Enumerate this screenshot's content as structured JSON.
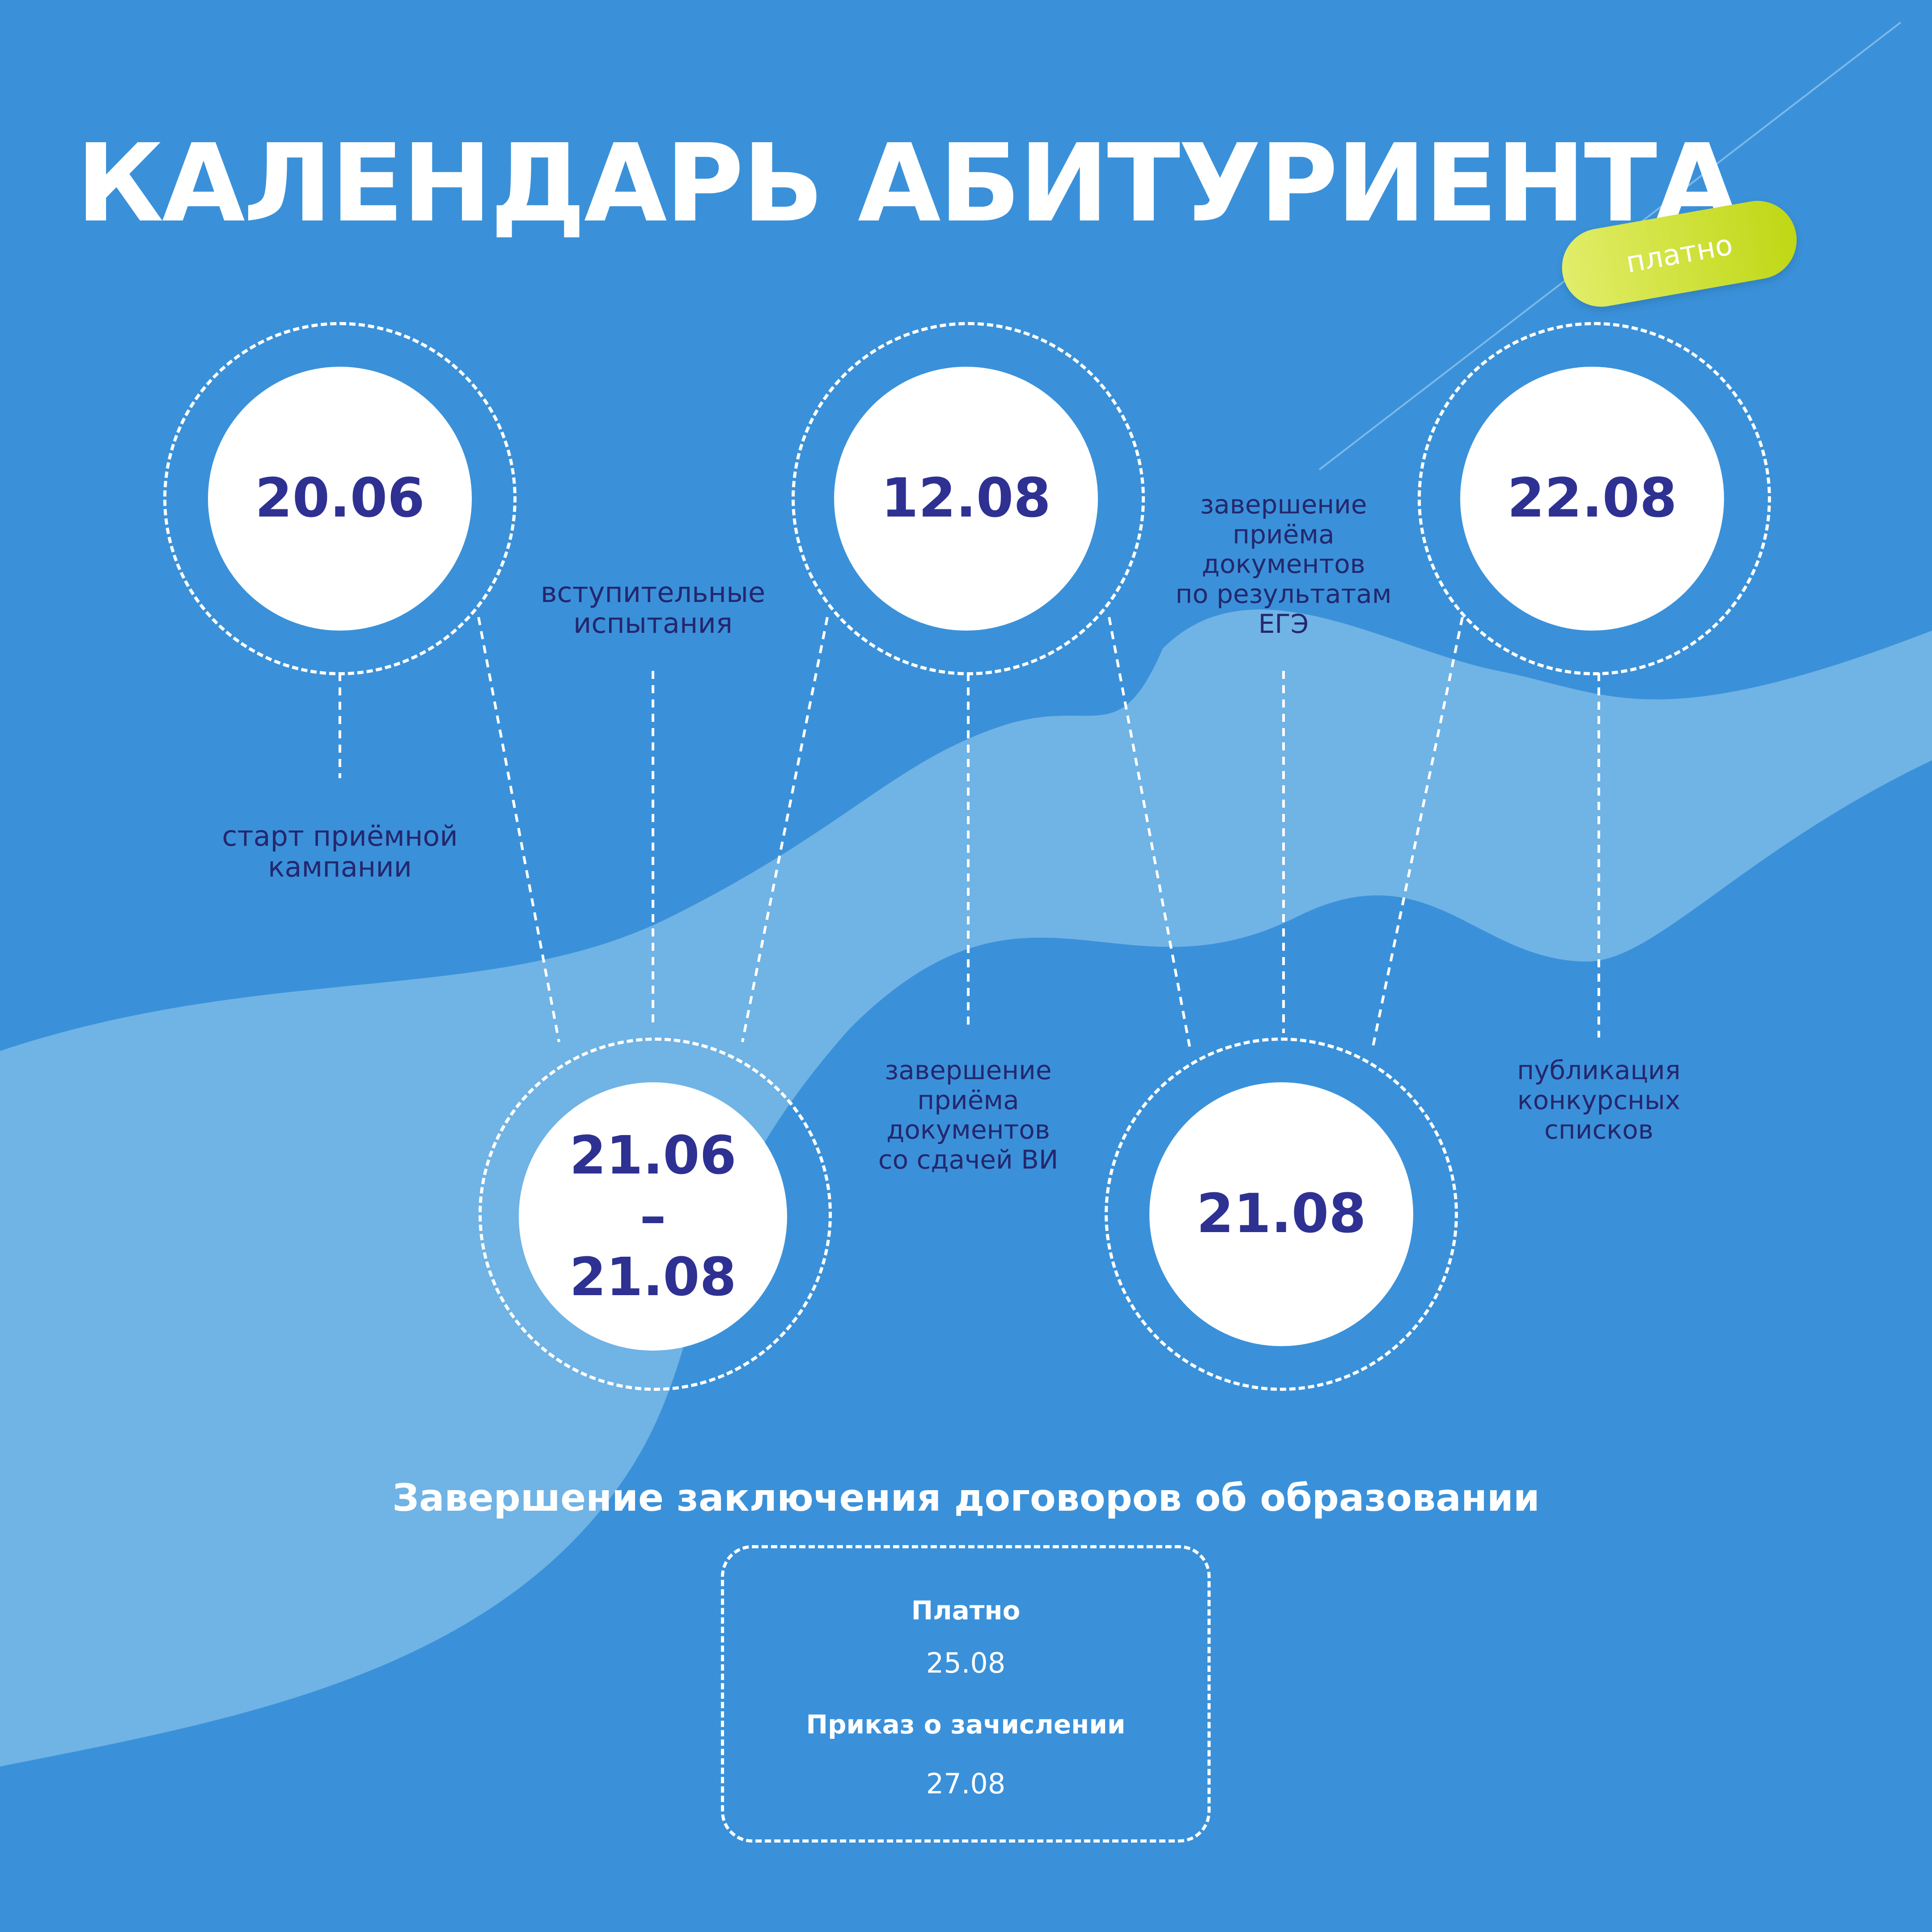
{
  "title": "КАЛЕНДАРЬ АБИТУРИЕНТА",
  "badge": "платно",
  "colors": {
    "background": "#3a91d9",
    "wave": "#7ab8e6",
    "date_text": "#2e3192",
    "label_text": "#24276e",
    "badge": "#c8dd22"
  },
  "dates": {
    "d1": "20.06",
    "d2": "12.08",
    "d3": "22.08",
    "d4_start": "21.06",
    "d4_dash": "–",
    "d4_end": "21.08",
    "d5": "21.08"
  },
  "labels": {
    "d1": [
      "старт приёмной",
      "кампании"
    ],
    "d4": [
      "вступительные",
      "испытания"
    ],
    "d2": [
      "завершение",
      "приёма",
      "документов",
      "со сдачей ВИ"
    ],
    "d5": [
      "завершение",
      "приёма",
      "документов",
      "по результатам",
      "ЕГЭ"
    ],
    "d3": [
      "публикация",
      "конкурсных",
      "списков"
    ]
  },
  "contracts": {
    "heading": "Завершение заключения договоров об образовании",
    "paid_label": "Платно",
    "paid_date": "25.08",
    "order_label": "Приказ о зачислении",
    "order_date": "27.08"
  }
}
